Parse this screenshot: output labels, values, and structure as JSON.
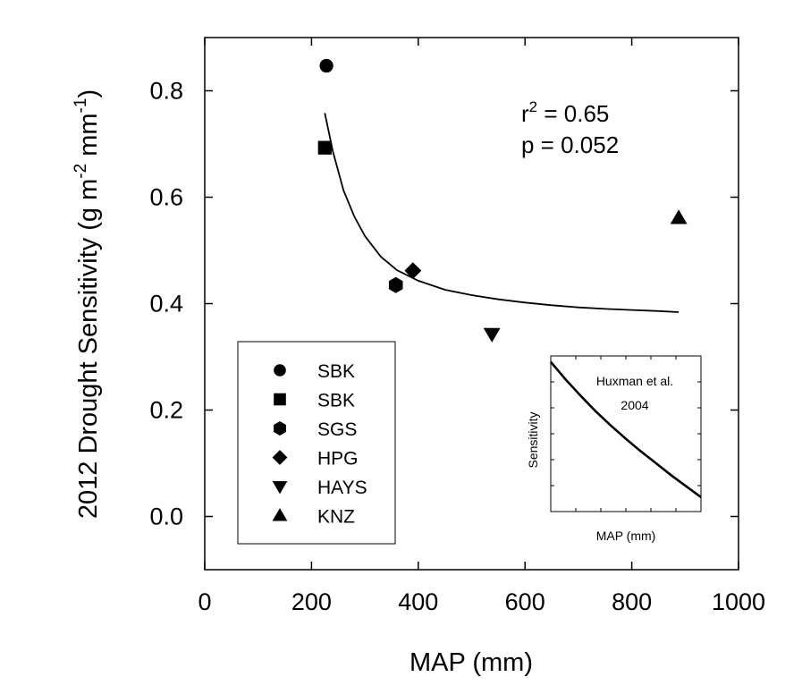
{
  "chart_data": {
    "type": "scatter",
    "xlabel": "MAP (mm)",
    "ylabel": {
      "main": "2012 Drought Sensitivity (g m",
      "exp1": "-2",
      "mid": " mm",
      "exp2": "-1",
      "end": ")"
    },
    "xlim": [
      0,
      1000
    ],
    "ylim": [
      -0.1,
      0.9
    ],
    "xticks": [
      0,
      200,
      400,
      600,
      800,
      1000
    ],
    "yticks": [
      0.0,
      0.2,
      0.4,
      0.6,
      0.8
    ],
    "xtick_labels": [
      "0",
      "200",
      "400",
      "600",
      "800",
      "1000"
    ],
    "ytick_labels": [
      "0.0",
      "0.2",
      "0.4",
      "0.6",
      "0.8"
    ],
    "points": [
      {
        "label": "SBK",
        "marker": "circle",
        "x": 228,
        "y": 0.847
      },
      {
        "label": "SBK",
        "marker": "square",
        "x": 225,
        "y": 0.693
      },
      {
        "label": "SGS",
        "marker": "hexagon",
        "x": 358,
        "y": 0.435
      },
      {
        "label": "HPG",
        "marker": "diamond",
        "x": 390,
        "y": 0.462
      },
      {
        "label": "HAYS",
        "marker": "triangle-down",
        "x": 538,
        "y": 0.343
      },
      {
        "label": "KNZ",
        "marker": "triangle-up",
        "x": 888,
        "y": 0.561
      }
    ],
    "fit_curve": {
      "x": [
        225,
        240,
        260,
        280,
        300,
        330,
        360,
        400,
        450,
        500,
        550,
        600,
        650,
        700,
        750,
        800,
        850,
        888
      ],
      "y": [
        0.758,
        0.686,
        0.613,
        0.564,
        0.527,
        0.488,
        0.463,
        0.443,
        0.426,
        0.416,
        0.408,
        0.402,
        0.397,
        0.393,
        0.39,
        0.388,
        0.386,
        0.384
      ]
    },
    "stats": {
      "r2_label": "r",
      "r2_exp": "2",
      "r2_value": " = 0.65",
      "p_text": "p = 0.052"
    },
    "legend_position": "bottom-left",
    "legend": [
      "SBK",
      "SBK",
      "SGS",
      "HPG",
      "HAYS",
      "KNZ"
    ],
    "inset": {
      "annotation_line1": "Huxman et al.",
      "annotation_line2": "2004",
      "xlabel": "MAP (mm)",
      "ylabel": "Sensitivity",
      "curve_x": [
        0,
        0.1,
        0.2,
        0.3,
        0.4,
        0.5,
        0.6,
        0.7,
        0.8,
        0.9,
        1.0
      ],
      "curve_y": [
        1.0,
        0.88,
        0.77,
        0.665,
        0.57,
        0.48,
        0.395,
        0.315,
        0.235,
        0.16,
        0.085
      ]
    }
  }
}
